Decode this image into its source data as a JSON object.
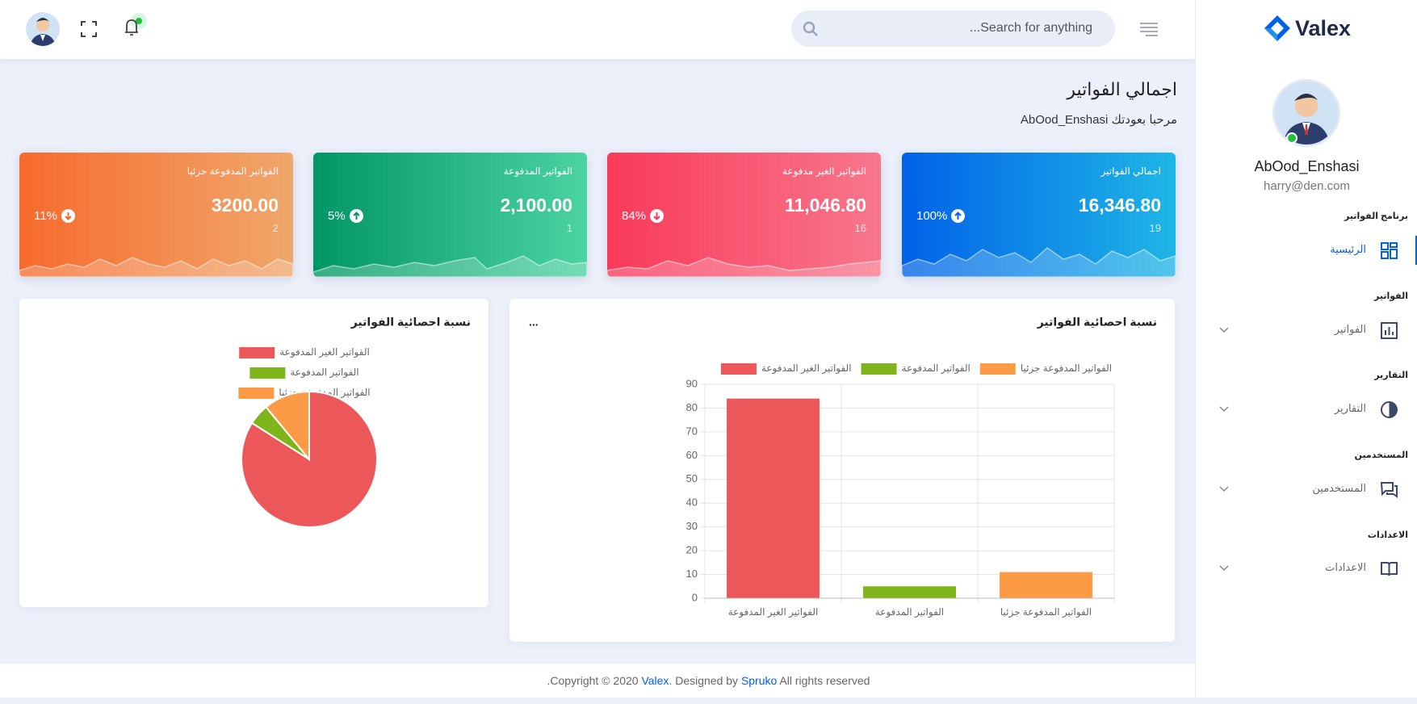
{
  "header": {
    "search_placeholder": "Search for anything...",
    "logo": "Valex"
  },
  "page_header": {
    "title": "اجمالي الفواتير",
    "subtitle": "مرحبا بعودتك AbOod_Enshasi"
  },
  "sidebar": {
    "user_name": "AbOod_Enshasi",
    "user_email": "harry@den.com",
    "sections": [
      {
        "heading": "برنامج الفواتير",
        "item": "الرئيسية",
        "icon": "grid",
        "active": true,
        "has_submenu": false
      },
      {
        "heading": "الفواتير",
        "item": "الفواتير",
        "icon": "bars",
        "active": false,
        "has_submenu": true
      },
      {
        "heading": "التقارير",
        "item": "التقارير",
        "icon": "half",
        "active": false,
        "has_submenu": true
      },
      {
        "heading": "المستخدمين",
        "item": "المستخدمين",
        "icon": "chat",
        "active": false,
        "has_submenu": true
      },
      {
        "heading": "الاعدادات",
        "item": "الاعدادات",
        "icon": "book",
        "active": false,
        "has_submenu": true
      }
    ]
  },
  "cards": [
    {
      "title": "اجمالي الفواتير",
      "amount": "16,346.80",
      "count": "19",
      "percent": "100%",
      "trend": "up",
      "colors": [
        "#0162e8",
        "#1fb6e6"
      ]
    },
    {
      "title": "الفواتير الغير مدفوعة",
      "amount": "11,046.80",
      "count": "16",
      "percent": "84%",
      "trend": "down",
      "colors": [
        "#f93a5a",
        "#f7778c"
      ]
    },
    {
      "title": "الفواتير المدفوعة",
      "amount": "2,100.00",
      "count": "1",
      "percent": "5%",
      "trend": "up",
      "colors": [
        "#029666",
        "#4cd3a2"
      ]
    },
    {
      "title": "الفواتير المدفوعة جزئيا",
      "amount": "3200.00",
      "count": "2",
      "percent": "11%",
      "trend": "down",
      "colors": [
        "#f76a2d",
        "#f0a76b"
      ]
    }
  ],
  "chart_data": [
    {
      "type": "bar",
      "title": "نسبة احصائية الفواتير",
      "menu": "...",
      "categories": [
        "الفواتير الغير المدفوعة",
        "الفواتير المدفوعة",
        "الفواتير المدفوعة جزئيا"
      ],
      "values": [
        84,
        5,
        11
      ],
      "colors": [
        "#ec5859",
        "#80b41b",
        "#fd9a45"
      ],
      "ylim": [
        0,
        90
      ],
      "yticks": [
        0,
        10,
        20,
        30,
        40,
        50,
        60,
        70,
        80,
        90
      ],
      "grid": true,
      "legend": "top"
    },
    {
      "type": "pie",
      "title": "نسبة احصائية الفواتير",
      "categories": [
        "الفواتير الغير المدفوعة",
        "الفواتير المدفوعة",
        "الفواتير المدفوعة جزئيا"
      ],
      "values": [
        84,
        5,
        11
      ],
      "colors": [
        "#ec5859",
        "#80b41b",
        "#fd9a45"
      ],
      "legend": "top"
    }
  ],
  "footer": {
    "parts": [
      "Copyright © 2020 ",
      "Valex",
      ". Designed by ",
      "Spruko",
      " All rights reserved."
    ]
  }
}
